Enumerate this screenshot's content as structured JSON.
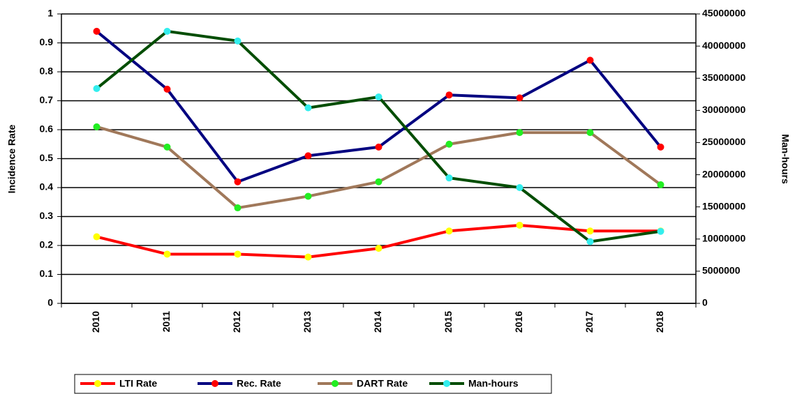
{
  "chart_data": {
    "type": "line",
    "categories": [
      "2010",
      "2011",
      "2012",
      "2013",
      "2014",
      "2015",
      "2016",
      "2017",
      "2018"
    ],
    "series": [
      {
        "name": "LTI Rate",
        "color": "#ff0000",
        "marker_color": "#ffff00",
        "values": [
          0.23,
          0.17,
          0.17,
          0.16,
          0.19,
          0.25,
          0.27,
          0.25,
          0.25
        ]
      },
      {
        "name": "Rec. Rate",
        "color": "#000080",
        "marker_color": "#ff0000",
        "values": [
          0.94,
          0.74,
          0.42,
          0.51,
          0.54,
          0.72,
          0.71,
          0.84,
          0.54
        ]
      },
      {
        "name": "DART Rate",
        "color": "#a0785a",
        "marker_color": "#22ee22",
        "values": [
          0.61,
          0.54,
          0.33,
          0.37,
          0.42,
          0.55,
          0.59,
          0.59,
          0.41
        ]
      },
      {
        "name": "Man-hours",
        "color": "#004d00",
        "marker_color": "#33eeee",
        "axis": "y2",
        "values": [
          33400000,
          42300000,
          40800000,
          30400000,
          32100000,
          19500000,
          18000000,
          9600000,
          11200000
        ]
      }
    ],
    "y_label": "Incidence Rate",
    "y2_label": "Man-hours",
    "ylim": [
      0,
      1
    ],
    "yticks": [
      0,
      0.1,
      0.2,
      0.3,
      0.4,
      0.5,
      0.6,
      0.7,
      0.8,
      0.9,
      1
    ],
    "y2lim": [
      0,
      45000000
    ],
    "y2ticks": [
      0,
      5000000,
      10000000,
      15000000,
      20000000,
      25000000,
      30000000,
      35000000,
      40000000,
      45000000
    ],
    "grid": true,
    "legend": "bottom"
  }
}
